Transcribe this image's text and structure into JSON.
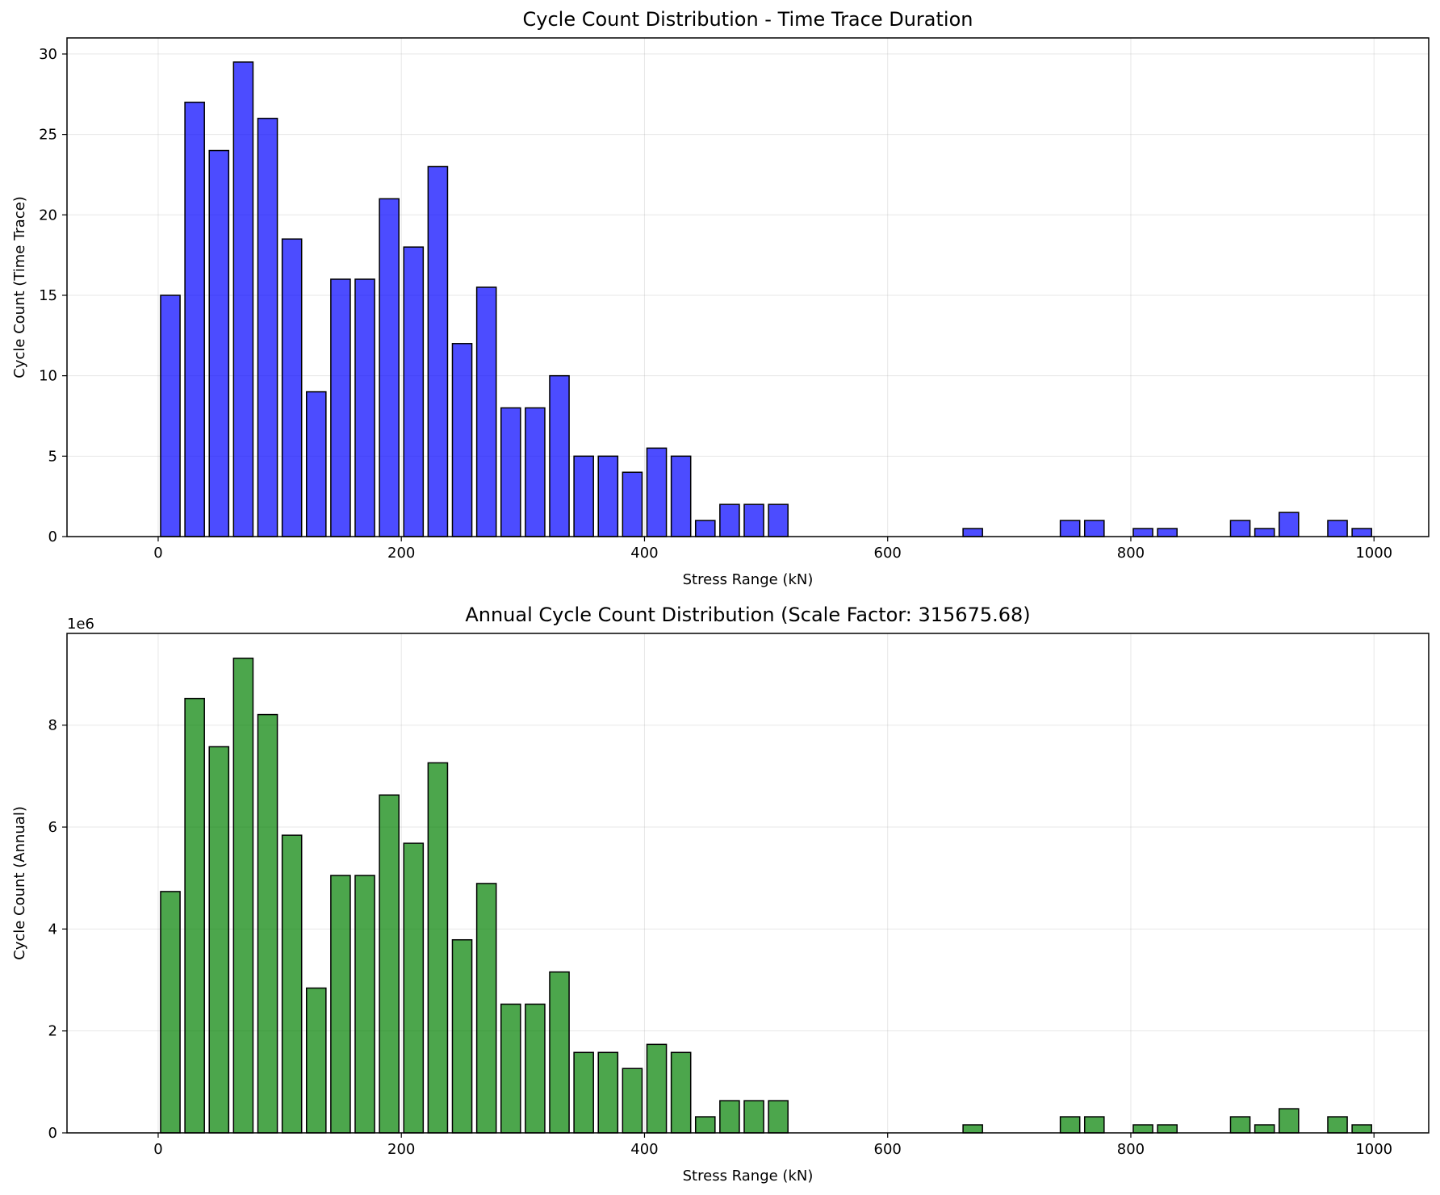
{
  "chart_data": [
    {
      "type": "bar",
      "title": "Cycle Count Distribution - Time Trace Duration",
      "xlabel": "Stress Range (kN)",
      "ylabel": "Cycle Count (Time Trace)",
      "xlim": [
        -75,
        1045
      ],
      "ylim": [
        0,
        31
      ],
      "xticks": [
        0,
        200,
        400,
        600,
        800,
        1000
      ],
      "yticks": [
        0,
        5,
        10,
        15,
        20,
        25,
        30
      ],
      "offset_text": "",
      "grid": true,
      "bar_color": "#0000ff",
      "bar_opacity": 0.7,
      "edge_color": "#000000",
      "bar_width": 16,
      "x": [
        10,
        30,
        50,
        70,
        90,
        110,
        130,
        150,
        170,
        190,
        210,
        230,
        250,
        270,
        290,
        310,
        330,
        350,
        370,
        390,
        410,
        430,
        450,
        470,
        490,
        510,
        530,
        550,
        570,
        590,
        610,
        630,
        650,
        670,
        690,
        710,
        730,
        750,
        770,
        790,
        810,
        830,
        850,
        870,
        890,
        910,
        930,
        950,
        970,
        990
      ],
      "values": [
        15,
        27,
        24,
        29.5,
        26,
        18.5,
        9,
        16,
        16,
        21,
        18,
        23,
        12,
        15.5,
        8,
        8,
        10,
        5,
        5,
        4,
        5.5,
        5,
        1,
        2,
        2,
        2,
        0,
        0,
        0,
        0,
        0,
        0,
        0,
        0.5,
        0,
        0,
        0,
        1,
        1,
        0,
        0.5,
        0.5,
        0,
        0,
        1,
        0.5,
        1.5,
        0,
        1,
        0.5
      ]
    },
    {
      "type": "bar",
      "title": "Annual Cycle Count Distribution (Scale Factor: 315675.68)",
      "xlabel": "Stress Range (kN)",
      "ylabel": "Cycle Count (Annual)",
      "xlim": [
        -75,
        1045
      ],
      "ylim": [
        0,
        9800000
      ],
      "xticks": [
        0,
        200,
        400,
        600,
        800,
        1000
      ],
      "yticks": [
        0,
        2000000,
        4000000,
        6000000,
        8000000
      ],
      "ytick_labels": [
        "0",
        "2",
        "4",
        "6",
        "8"
      ],
      "offset_text": "1e6",
      "grid": true,
      "bar_color": "#008000",
      "bar_opacity": 0.7,
      "edge_color": "#000000",
      "bar_width": 16,
      "x": [
        10,
        30,
        50,
        70,
        90,
        110,
        130,
        150,
        170,
        190,
        210,
        230,
        250,
        270,
        290,
        310,
        330,
        350,
        370,
        390,
        410,
        430,
        450,
        470,
        490,
        510,
        530,
        550,
        570,
        590,
        610,
        630,
        650,
        670,
        690,
        710,
        730,
        750,
        770,
        790,
        810,
        830,
        850,
        870,
        890,
        910,
        930,
        950,
        970,
        990
      ],
      "values": [
        4735135,
        8523243,
        7576216,
        9312433,
        8207568,
        5840000,
        2841081,
        5050811,
        5050811,
        6629189,
        5682162,
        7260541,
        3788108,
        4892973,
        2525405,
        2525405,
        3156757,
        1578378,
        1578378,
        1262703,
        1736216,
        1578378,
        315676,
        631351,
        631351,
        631351,
        0,
        0,
        0,
        0,
        0,
        0,
        0,
        157838,
        0,
        0,
        0,
        315676,
        315676,
        0,
        157838,
        157838,
        0,
        0,
        315676,
        157838,
        473514,
        0,
        315676,
        157838
      ]
    }
  ]
}
